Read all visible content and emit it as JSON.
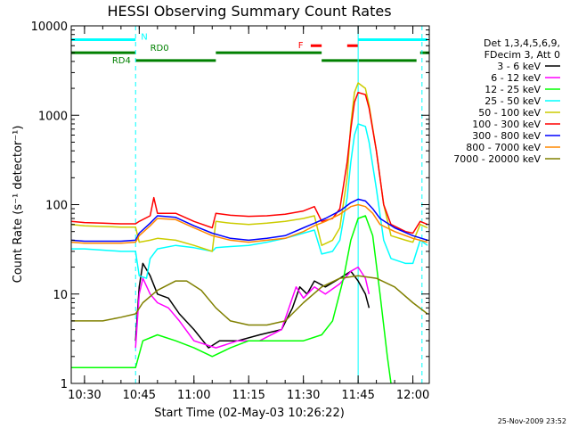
{
  "chart_data": {
    "type": "line",
    "title": "HESSI Observing Summary Count Rates",
    "xlabel": "Start Time (02-May-03 10:26:22)",
    "ylabel": "Count Rate (s⁻¹ detector⁻¹)",
    "y_scale": "log",
    "ylim": [
      1,
      10000
    ],
    "xlim": [
      "10:26:22",
      "12:04:30"
    ],
    "y_ticks": [
      {
        "value": 1,
        "label": "1"
      },
      {
        "value": 10,
        "label": "10"
      },
      {
        "value": 100,
        "label": "100"
      },
      {
        "value": 1000,
        "label": "1000"
      },
      {
        "value": 10000,
        "label": "10000"
      }
    ],
    "x_ticks": [
      "10:30",
      "10:45",
      "11:00",
      "11:15",
      "11:30",
      "11:45",
      "12:00"
    ],
    "legend_header": [
      "Det 1,3,4,5,6,9,",
      "FDecim 3, Att 0"
    ],
    "footer_date": "25-Nov-2009 23:52",
    "series": [
      {
        "name": "3 - 6 keV",
        "color": "#000000",
        "points": [
          [
            "10:44:00",
            3
          ],
          [
            "10:45:00",
            12
          ],
          [
            "10:46:00",
            22
          ],
          [
            "10:48:00",
            16
          ],
          [
            "10:50:00",
            10
          ],
          [
            "10:53:00",
            9
          ],
          [
            "10:56:00",
            6
          ],
          [
            "11:00:00",
            4
          ],
          [
            "11:04:00",
            2.5
          ],
          [
            "11:07:00",
            3
          ],
          [
            "11:12:00",
            3
          ],
          [
            "11:18:00",
            3.5
          ],
          [
            "11:24:00",
            4
          ],
          [
            "11:27:00",
            7
          ],
          [
            "11:29:00",
            12
          ],
          [
            "11:31:00",
            10
          ],
          [
            "11:33:00",
            14
          ],
          [
            "11:36:00",
            12
          ],
          [
            "11:40:00",
            15
          ],
          [
            "11:43:00",
            18
          ],
          [
            "11:45:00",
            14
          ],
          [
            "11:47:00",
            10
          ],
          [
            "11:48:00",
            7
          ]
        ]
      },
      {
        "name": "6 - 12 keV",
        "color": "#ff00ff",
        "points": [
          [
            "10:44:00",
            2.5
          ],
          [
            "10:45:00",
            10
          ],
          [
            "10:46:00",
            15
          ],
          [
            "10:48:00",
            10
          ],
          [
            "10:50:00",
            8
          ],
          [
            "10:53:00",
            7
          ],
          [
            "10:56:00",
            5
          ],
          [
            "11:00:00",
            3
          ],
          [
            "11:06:00",
            2.5
          ],
          [
            "11:12:00",
            3
          ],
          [
            "11:18:00",
            3
          ],
          [
            "11:24:00",
            4
          ],
          [
            "11:28:00",
            12
          ],
          [
            "11:30:00",
            9
          ],
          [
            "11:33:00",
            12
          ],
          [
            "11:36:00",
            10
          ],
          [
            "11:40:00",
            13
          ],
          [
            "11:43:00",
            18
          ],
          [
            "11:45:00",
            20
          ],
          [
            "11:47:00",
            15
          ],
          [
            "11:48:00",
            10
          ]
        ]
      },
      {
        "name": "12 - 25 keV",
        "color": "#00ff00",
        "points": [
          [
            "10:26:22",
            1.5
          ],
          [
            "10:30:00",
            1.5
          ],
          [
            "10:35:00",
            1.5
          ],
          [
            "10:40:00",
            1.5
          ],
          [
            "10:44:00",
            1.5
          ],
          [
            "10:46:00",
            3
          ],
          [
            "10:50:00",
            3.5
          ],
          [
            "10:55:00",
            3
          ],
          [
            "11:00:00",
            2.5
          ],
          [
            "11:05:00",
            2
          ],
          [
            "11:10:00",
            2.5
          ],
          [
            "11:15:00",
            3
          ],
          [
            "11:20:00",
            3
          ],
          [
            "11:25:00",
            3
          ],
          [
            "11:30:00",
            3
          ],
          [
            "11:35:00",
            3.5
          ],
          [
            "11:38:00",
            5
          ],
          [
            "11:41:00",
            15
          ],
          [
            "11:43:00",
            40
          ],
          [
            "11:45:00",
            70
          ],
          [
            "11:47:00",
            75
          ],
          [
            "11:49:00",
            45
          ],
          [
            "11:51:00",
            10
          ],
          [
            "11:53:00",
            2
          ],
          [
            "11:54:00",
            1
          ]
        ]
      },
      {
        "name": "25 - 50 keV",
        "color": "#00ffff",
        "points": [
          [
            "10:26:22",
            32
          ],
          [
            "10:30:00",
            32
          ],
          [
            "10:35:00",
            31
          ],
          [
            "10:40:00",
            30
          ],
          [
            "10:44:00",
            30
          ],
          [
            "10:45:00",
            16
          ],
          [
            "10:47:00",
            15
          ],
          [
            "10:48:00",
            25
          ],
          [
            "10:50:00",
            32
          ],
          [
            "10:55:00",
            35
          ],
          [
            "11:00:00",
            33
          ],
          [
            "11:05:00",
            30
          ],
          [
            "11:06:00",
            33
          ],
          [
            "11:10:00",
            34
          ],
          [
            "11:15:00",
            35
          ],
          [
            "11:20:00",
            38
          ],
          [
            "11:25:00",
            42
          ],
          [
            "11:30:00",
            48
          ],
          [
            "11:33:00",
            52
          ],
          [
            "11:35:00",
            28
          ],
          [
            "11:38:00",
            30
          ],
          [
            "11:40:00",
            40
          ],
          [
            "11:42:00",
            120
          ],
          [
            "11:43:00",
            300
          ],
          [
            "11:44:00",
            600
          ],
          [
            "11:45:00",
            800
          ],
          [
            "11:47:00",
            750
          ],
          [
            "11:48:00",
            500
          ],
          [
            "11:50:00",
            150
          ],
          [
            "11:52:00",
            40
          ],
          [
            "11:54:00",
            25
          ],
          [
            "11:58:00",
            22
          ],
          [
            "12:00:00",
            22
          ],
          [
            "12:02:00",
            40
          ],
          [
            "12:04:00",
            35
          ]
        ]
      },
      {
        "name": "50 - 100 keV",
        "color": "#cccc00",
        "points": [
          [
            "10:26:22",
            60
          ],
          [
            "10:30:00",
            58
          ],
          [
            "10:35:00",
            57
          ],
          [
            "10:40:00",
            56
          ],
          [
            "10:44:00",
            56
          ],
          [
            "10:45:00",
            38
          ],
          [
            "10:48:00",
            40
          ],
          [
            "10:50:00",
            42
          ],
          [
            "10:55:00",
            40
          ],
          [
            "11:00:00",
            35
          ],
          [
            "11:05:00",
            30
          ],
          [
            "11:06:00",
            65
          ],
          [
            "11:10:00",
            62
          ],
          [
            "11:15:00",
            60
          ],
          [
            "11:20:00",
            62
          ],
          [
            "11:25:00",
            65
          ],
          [
            "11:30:00",
            70
          ],
          [
            "11:33:00",
            75
          ],
          [
            "11:35:00",
            35
          ],
          [
            "11:38:00",
            40
          ],
          [
            "11:40:00",
            55
          ],
          [
            "11:42:00",
            200
          ],
          [
            "11:43:00",
            800
          ],
          [
            "11:44:00",
            1800
          ],
          [
            "11:45:00",
            2300
          ],
          [
            "11:47:00",
            2000
          ],
          [
            "11:48:00",
            1300
          ],
          [
            "11:50:00",
            400
          ],
          [
            "11:52:00",
            100
          ],
          [
            "11:54:00",
            45
          ],
          [
            "11:58:00",
            40
          ],
          [
            "12:00:00",
            38
          ],
          [
            "12:02:00",
            60
          ],
          [
            "12:04:00",
            55
          ]
        ]
      },
      {
        "name": "100 - 300 keV",
        "color": "#ff0000",
        "points": [
          [
            "10:26:22",
            65
          ],
          [
            "10:30:00",
            63
          ],
          [
            "10:35:00",
            62
          ],
          [
            "10:40:00",
            61
          ],
          [
            "10:44:00",
            61
          ],
          [
            "10:45:00",
            65
          ],
          [
            "10:48:00",
            75
          ],
          [
            "10:49:00",
            120
          ],
          [
            "10:50:00",
            80
          ],
          [
            "10:55:00",
            80
          ],
          [
            "11:00:00",
            65
          ],
          [
            "11:05:00",
            55
          ],
          [
            "11:06:00",
            80
          ],
          [
            "11:10:00",
            76
          ],
          [
            "11:15:00",
            74
          ],
          [
            "11:20:00",
            75
          ],
          [
            "11:25:00",
            78
          ],
          [
            "11:30:00",
            85
          ],
          [
            "11:33:00",
            95
          ],
          [
            "11:35:00",
            65
          ],
          [
            "11:38:00",
            70
          ],
          [
            "11:40:00",
            90
          ],
          [
            "11:42:00",
            300
          ],
          [
            "11:43:00",
            700
          ],
          [
            "11:44:00",
            1400
          ],
          [
            "11:45:00",
            1800
          ],
          [
            "11:47:00",
            1700
          ],
          [
            "11:48:00",
            1200
          ],
          [
            "11:50:00",
            400
          ],
          [
            "11:52:00",
            100
          ],
          [
            "11:54:00",
            60
          ],
          [
            "11:58:00",
            50
          ],
          [
            "12:00:00",
            48
          ],
          [
            "12:02:00",
            65
          ],
          [
            "12:04:00",
            60
          ]
        ]
      },
      {
        "name": "300 - 800 keV",
        "color": "#0000ff",
        "points": [
          [
            "10:26:22",
            40
          ],
          [
            "10:30:00",
            39
          ],
          [
            "10:35:00",
            39
          ],
          [
            "10:40:00",
            39
          ],
          [
            "10:44:00",
            40
          ],
          [
            "10:45:00",
            48
          ],
          [
            "10:48:00",
            62
          ],
          [
            "10:50:00",
            75
          ],
          [
            "10:55:00",
            72
          ],
          [
            "11:00:00",
            58
          ],
          [
            "11:05:00",
            48
          ],
          [
            "11:10:00",
            42
          ],
          [
            "11:15:00",
            40
          ],
          [
            "11:20:00",
            42
          ],
          [
            "11:25:00",
            45
          ],
          [
            "11:30:00",
            55
          ],
          [
            "11:33:00",
            62
          ],
          [
            "11:36:00",
            70
          ],
          [
            "11:40:00",
            85
          ],
          [
            "11:43:00",
            105
          ],
          [
            "11:45:00",
            115
          ],
          [
            "11:47:00",
            110
          ],
          [
            "11:49:00",
            90
          ],
          [
            "11:51:00",
            70
          ],
          [
            "11:55:00",
            55
          ],
          [
            "12:00:00",
            45
          ],
          [
            "12:04:00",
            40
          ]
        ]
      },
      {
        "name": "800 - 7000 keV",
        "color": "#ff8800",
        "points": [
          [
            "10:26:22",
            38
          ],
          [
            "10:30:00",
            37
          ],
          [
            "10:35:00",
            37
          ],
          [
            "10:40:00",
            37
          ],
          [
            "10:44:00",
            38
          ],
          [
            "10:45:00",
            45
          ],
          [
            "10:48:00",
            58
          ],
          [
            "10:50:00",
            70
          ],
          [
            "10:55:00",
            68
          ],
          [
            "11:00:00",
            55
          ],
          [
            "11:05:00",
            45
          ],
          [
            "11:10:00",
            40
          ],
          [
            "11:15:00",
            38
          ],
          [
            "11:20:00",
            40
          ],
          [
            "11:25:00",
            42
          ],
          [
            "11:30:00",
            50
          ],
          [
            "11:33:00",
            58
          ],
          [
            "11:36:00",
            65
          ],
          [
            "11:40:00",
            78
          ],
          [
            "11:43:00",
            95
          ],
          [
            "11:45:00",
            100
          ],
          [
            "11:47:00",
            95
          ],
          [
            "11:49:00",
            80
          ],
          [
            "11:51:00",
            60
          ],
          [
            "11:55:00",
            50
          ],
          [
            "12:00:00",
            42
          ],
          [
            "12:04:00",
            38
          ]
        ]
      },
      {
        "name": "7000 - 20000 keV",
        "color": "#808000",
        "points": [
          [
            "10:26:22",
            5
          ],
          [
            "10:30:00",
            5
          ],
          [
            "10:35:00",
            5
          ],
          [
            "10:40:00",
            5.5
          ],
          [
            "10:44:00",
            6
          ],
          [
            "10:46:00",
            8
          ],
          [
            "10:50:00",
            11
          ],
          [
            "10:55:00",
            14
          ],
          [
            "10:58:00",
            14
          ],
          [
            "11:02:00",
            11
          ],
          [
            "11:06:00",
            7
          ],
          [
            "11:10:00",
            5
          ],
          [
            "11:15:00",
            4.5
          ],
          [
            "11:20:00",
            4.5
          ],
          [
            "11:25:00",
            5
          ],
          [
            "11:30:00",
            8
          ],
          [
            "11:35:00",
            12
          ],
          [
            "11:40:00",
            15
          ],
          [
            "11:45:00",
            16
          ],
          [
            "11:50:00",
            15
          ],
          [
            "11:55:00",
            12
          ],
          [
            "12:00:00",
            8
          ],
          [
            "12:04:00",
            6
          ]
        ]
      }
    ],
    "bars": [
      {
        "label": "N",
        "color": "#00ffff",
        "y": 7000,
        "segments": [
          [
            "10:26:22",
            "10:44:00"
          ],
          [
            "11:45:00",
            "12:04:00"
          ]
        ]
      },
      {
        "label": "F",
        "color": "#ff0000",
        "y": 6000,
        "segments": [
          [
            "11:32:00",
            "11:35:00"
          ],
          [
            "11:42:00",
            "11:45:00"
          ]
        ]
      },
      {
        "label": "RD0",
        "color": "#008000",
        "y": 5000,
        "segments": [
          [
            "10:26:22",
            "10:44:00"
          ],
          [
            "11:06:00",
            "11:35:00"
          ],
          [
            "12:02:00",
            "12:04:30"
          ]
        ]
      },
      {
        "label": "RD4",
        "color": "#008000",
        "y": 4100,
        "segments": [
          [
            "10:44:00",
            "11:06:00"
          ],
          [
            "11:35:00",
            "12:01:00"
          ]
        ]
      }
    ],
    "vertical_markers": [
      {
        "time": "10:44:00",
        "color": "#00ffff",
        "style": "dashed"
      },
      {
        "time": "11:45:00",
        "color": "#00ffff",
        "style": "solid"
      },
      {
        "time": "12:02:30",
        "color": "#00ffff",
        "style": "dashed"
      }
    ]
  }
}
